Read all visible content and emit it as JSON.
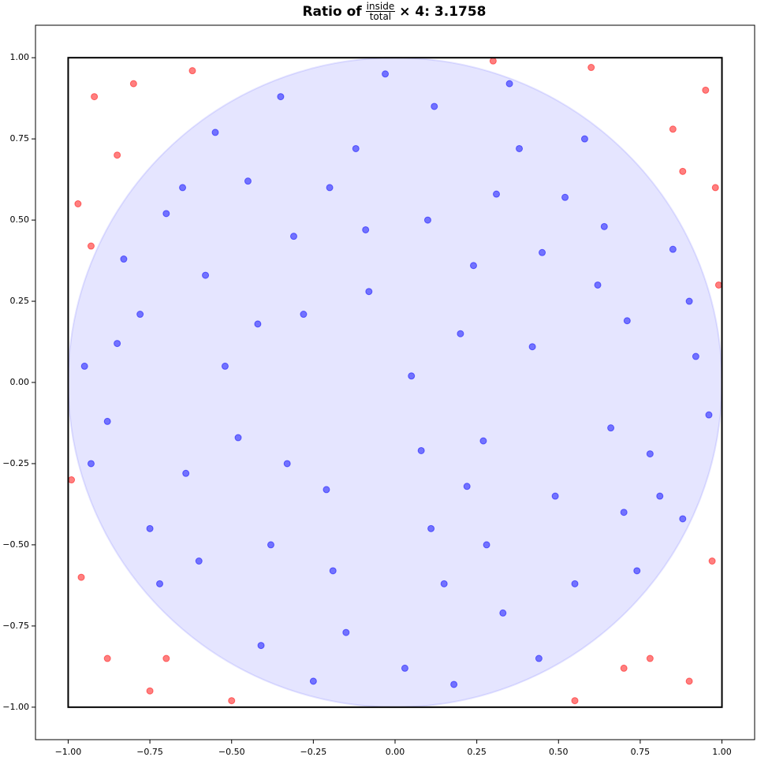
{
  "chart_data": {
    "type": "scatter",
    "title_parts": [
      "Ratio of",
      "inside",
      "total",
      "× 4: 3.1758"
    ],
    "xlim": [
      -1.1,
      1.1
    ],
    "ylim": [
      -1.1,
      1.1
    ],
    "xticks": [
      {
        "value": -1,
        "label": "−1.00"
      },
      {
        "value": -0.75,
        "label": "−0.75"
      },
      {
        "value": -0.5,
        "label": "−0.50"
      },
      {
        "value": -0.25,
        "label": "−0.25"
      },
      {
        "value": 0,
        "label": "0.00"
      },
      {
        "value": 0.25,
        "label": "0.25"
      },
      {
        "value": 0.5,
        "label": "0.50"
      },
      {
        "value": 0.75,
        "label": "0.75"
      },
      {
        "value": 1,
        "label": "1.00"
      }
    ],
    "yticks": [
      {
        "value": -1,
        "label": "−1.00"
      },
      {
        "value": -0.75,
        "label": "−0.75"
      },
      {
        "value": -0.5,
        "label": "−0.50"
      },
      {
        "value": -0.25,
        "label": "−0.25"
      },
      {
        "value": 0,
        "label": "0.00"
      },
      {
        "value": 0.25,
        "label": "0.25"
      },
      {
        "value": 0.5,
        "label": "0.50"
      },
      {
        "value": 0.75,
        "label": "0.75"
      },
      {
        "value": 1,
        "label": "1.00"
      }
    ],
    "circle": {
      "center": [
        0,
        0
      ],
      "radius": 1,
      "color": "#0000ff",
      "alpha": 0.1
    },
    "square": [
      -1,
      1
    ],
    "point_alpha": 0.5,
    "series": [
      {
        "color": "#0000ff",
        "x": [
          0.12,
          -0.45,
          0.33,
          -0.78,
          0.64,
          -0.21,
          0.05,
          0.81,
          -0.6,
          0.42,
          -0.09,
          0.27,
          -0.88,
          0.71,
          -0.35,
          0.18,
          -0.52,
          0.55,
          -0.15,
          0.92,
          -0.7,
          0.38,
          -0.28,
          0.11,
          -0.83,
          0.66,
          -0.41,
          0.24,
          -0.64,
          0.85,
          -0.03,
          0.49,
          -0.93,
          0.31,
          -0.19,
          0.74,
          -0.55,
          0.08,
          -0.72,
          0.58,
          0.96,
          -0.31,
          0.2,
          -0.48,
          0.44,
          -0.12,
          0.62,
          -0.85,
          0.15,
          -0.38,
          0.78,
          -0.58,
          0.03,
          0.35,
          -0.25,
          0.88,
          -0.75,
          0.52,
          -0.08,
          0.28,
          -0.95,
          0.45,
          -0.42,
          0.7,
          -0.2,
          0.1,
          -0.65,
          0.9,
          -0.33,
          0.22
        ],
        "values": [
          0.85,
          0.62,
          -0.71,
          0.21,
          0.48,
          -0.33,
          0.02,
          -0.35,
          -0.55,
          0.11,
          0.47,
          -0.18,
          -0.12,
          0.19,
          0.88,
          -0.93,
          0.05,
          -0.62,
          -0.77,
          0.08,
          0.52,
          0.72,
          0.21,
          -0.45,
          0.38,
          -0.14,
          -0.81,
          0.36,
          -0.28,
          0.41,
          0.95,
          -0.35,
          -0.25,
          0.58,
          -0.58,
          -0.58,
          0.77,
          -0.21,
          -0.62,
          0.75,
          -0.1,
          0.45,
          0.15,
          -0.17,
          -0.85,
          0.72,
          0.3,
          0.12,
          -0.62,
          -0.5,
          -0.22,
          0.33,
          -0.88,
          0.92,
          -0.92,
          -0.42,
          -0.45,
          0.57,
          0.28,
          -0.5,
          0.05,
          0.4,
          0.18,
          -0.4,
          0.6,
          0.5,
          0.6,
          0.25,
          -0.25,
          -0.32
        ]
      },
      {
        "color": "#ff0000",
        "x": [
          0.95,
          0.85,
          -0.92,
          -0.8,
          0.9,
          0.78,
          -0.88,
          -0.75,
          0.98,
          -0.97,
          0.6,
          -0.62,
          0.97,
          -0.96,
          0.55,
          -0.5,
          0.88,
          -0.85,
          0.7,
          -0.7,
          0.99,
          -0.99,
          0.3,
          -0.93
        ],
        "values": [
          0.9,
          0.78,
          0.88,
          0.92,
          -0.92,
          -0.85,
          -0.85,
          -0.95,
          0.6,
          0.55,
          0.97,
          0.96,
          -0.55,
          -0.6,
          -0.98,
          -0.98,
          0.65,
          0.7,
          -0.88,
          -0.85,
          0.3,
          -0.3,
          0.99,
          0.42
        ]
      }
    ]
  }
}
